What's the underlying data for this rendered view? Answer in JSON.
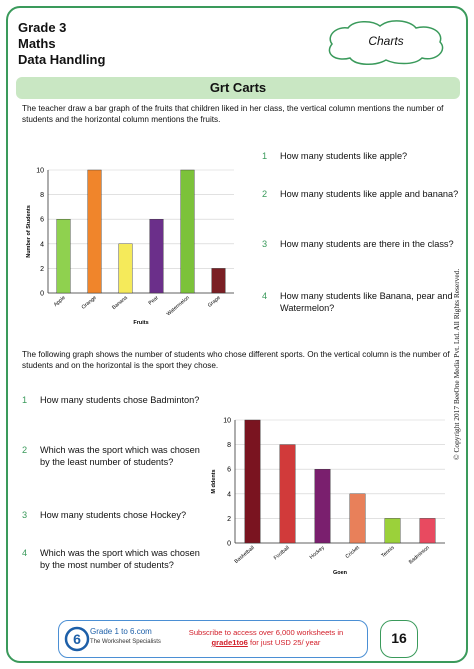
{
  "header": {
    "grade": "Grade 3",
    "subject": "Maths",
    "topic": "Data Handling",
    "badge": "Charts"
  },
  "title": "Grt Carts",
  "intro1": "The teacher draw a bar graph of the fruits that children liked in her class, the vertical column mentions the number of students  and the horizontal column mentions the fruits.",
  "questions1": [
    {
      "n": "1",
      "text": "How many students like apple?"
    },
    {
      "n": "2",
      "text": "How many students like apple and banana?"
    },
    {
      "n": "3",
      "text": "How many students are there in the class?"
    },
    {
      "n": "4",
      "text": "How many students like Banana, pear and Watermelon?"
    }
  ],
  "intro2": "The following graph shows the number of students who chose different sports. On the vertical column is the number of students and on the horizontal is the sport they chose.",
  "questions2": [
    {
      "n": "1",
      "text": "How many students chose Badminton?"
    },
    {
      "n": "2",
      "text": "Which was the sport which was chosen by the least number of students?"
    },
    {
      "n": "3",
      "text": "How many students chose Hockey?"
    },
    {
      "n": "4",
      "text": "Which was the sport which was chosen by the most number of students?"
    }
  ],
  "copyright": "© Copyright 2017 BeeOne Media Pvt. Ltd. All Rights Reserved.",
  "footer": {
    "logo_title": "Grade 1 to 6.com",
    "logo_sub": "The Worksheet Specialists",
    "promo_line1": "Subscribe to access over 6,000 worksheets in",
    "promo_link": "grade1to6",
    "promo_line2": " for just USD 25/ year",
    "page_number": "16"
  },
  "chart_data": [
    {
      "type": "bar",
      "categories": [
        "Apple",
        "Orange",
        "Banana",
        "Pear",
        "Watermelon",
        "Grape"
      ],
      "values": [
        6,
        10,
        4,
        6,
        10,
        2
      ],
      "colors": [
        "#8fd14f",
        "#f0852b",
        "#f5ea5a",
        "#6b2f8a",
        "#7cc23a",
        "#7a1f24"
      ],
      "xlabel": "Fruits",
      "ylabel": "Number of Students",
      "ylim": [
        0,
        10
      ],
      "yticks": [
        0,
        2,
        4,
        6,
        8,
        10
      ]
    },
    {
      "type": "bar",
      "categories": [
        "Basketball",
        "Football",
        "Hockey",
        "Cricket",
        "Tennis",
        "Badminton"
      ],
      "values": [
        10,
        8,
        6,
        4,
        2,
        2
      ],
      "colors": [
        "#7a1420",
        "#d13a3a",
        "#7a1f6e",
        "#e8805a",
        "#9bd13a",
        "#e84a60"
      ],
      "xlabel": "Goen",
      "ylabel": "M ddents",
      "ylim": [
        0,
        10
      ],
      "yticks": [
        0,
        2,
        4,
        6,
        8,
        10
      ]
    }
  ]
}
